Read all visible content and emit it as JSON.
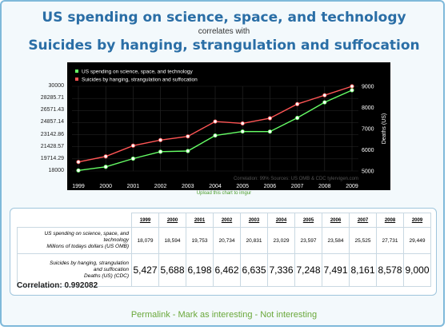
{
  "titles": {
    "line1": "US spending on science, space, and technology",
    "line2": "correlates with",
    "line3": "Suicides by hanging, strangulation and suffocation"
  },
  "upload_link": "Upload this chart to imgur",
  "chart_data": {
    "type": "line",
    "x": [
      1999,
      2000,
      2001,
      2002,
      2003,
      2004,
      2005,
      2006,
      2007,
      2008,
      2009
    ],
    "series": [
      {
        "name": "US spending on science, space, and technology",
        "color": "#66ff66",
        "axis": "left",
        "values": [
          18079,
          18594,
          19753,
          20734,
          20831,
          23029,
          23597,
          23584,
          25525,
          27731,
          29449
        ]
      },
      {
        "name": "Suicides by hanging, strangulation and suffocation",
        "color": "#ff5555",
        "axis": "right",
        "values": [
          5427,
          5688,
          6198,
          6462,
          6635,
          7336,
          7248,
          7491,
          8161,
          8578,
          9000
        ]
      }
    ],
    "yleft_ticks": [
      "18000",
      "19714.29",
      "21428.57",
      "23142.86",
      "24857.14",
      "26571.43",
      "28285.71",
      "30000"
    ],
    "yleft_range": [
      18000,
      30000
    ],
    "yright_ticks": [
      "5000",
      "6000",
      "7000",
      "8000",
      "9000"
    ],
    "yright_range": [
      5000,
      9000
    ],
    "yright_label": "Deaths (US)",
    "credit": "Correlation: 99%    Sources: US OMB & CDC    tylervigen.com",
    "background": "#000000"
  },
  "table": {
    "years": [
      "1999",
      "2000",
      "2001",
      "2002",
      "2003",
      "2004",
      "2005",
      "2006",
      "2007",
      "2008",
      "2009"
    ],
    "row1_label": [
      "US spending on science, space, and",
      "technology",
      "Millions of todays dollars (US OMB)"
    ],
    "row1": [
      "18,079",
      "18,594",
      "19,753",
      "20,734",
      "20,831",
      "23,029",
      "23,597",
      "23,584",
      "25,525",
      "27,731",
      "29,449"
    ],
    "row2_label": [
      "Suicides by hanging, strangulation",
      "and suffocation",
      "Deaths (US) (CDC)"
    ],
    "row2": [
      "5,427",
      "5,688",
      "6,198",
      "6,462",
      "6,635",
      "7,336",
      "7,248",
      "7,491",
      "8,161",
      "8,578",
      "9,000"
    ]
  },
  "correlation": "Correlation: 0.992082",
  "links": {
    "permalink": "Permalink",
    "mark": "Mark as interesting",
    "not": "Not interesting",
    "sep": " - "
  }
}
